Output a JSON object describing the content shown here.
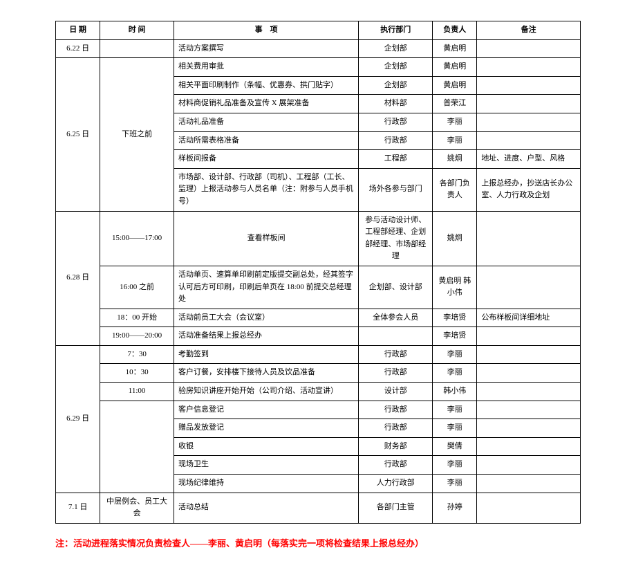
{
  "headers": {
    "date": "日 期",
    "time": "时 间",
    "item": "事　项",
    "dept": "执行部门",
    "person": "负责人",
    "note": "备注"
  },
  "rows": [
    {
      "date": "6.22 日",
      "time": "",
      "item": "活动方案撰写",
      "dept": "企划部",
      "person": "黄启明",
      "note": ""
    },
    {
      "date": "6.25 日",
      "dateRowspan": 7,
      "time": "下班之前",
      "timeRowspan": 7,
      "item": "相关费用审批",
      "dept": "企划部",
      "person": "黄启明",
      "note": ""
    },
    {
      "item": "相关平面印刷制作（条幅、优惠券、拱门贴字）",
      "dept": "企划部",
      "person": "黄启明",
      "note": ""
    },
    {
      "item": "材料商促销礼品准备及宣传 X 展架准备",
      "dept": "材料部",
      "person": "普荣江",
      "note": ""
    },
    {
      "item": "活动礼品准备",
      "dept": "行政部",
      "person": "李丽",
      "note": ""
    },
    {
      "item": "活动所需表格准备",
      "dept": "行政部",
      "person": "李丽",
      "note": ""
    },
    {
      "item": "样板间报备",
      "dept": "工程部",
      "person": "姚炯",
      "note": "地址、进度、户型、风格"
    },
    {
      "item": "市场部、设计部、行政部（司机）、工程部（工长、监理）上报活动参与人员名单（注：附参与人员手机号）",
      "dept": "场外各参与部门",
      "person": "各部门负责人",
      "note": "上报总经办，抄送店长办公室、人力行政及企划"
    },
    {
      "date": "6.28 日",
      "dateRowspan": 4,
      "time": "15:00——17:00",
      "item": "查看样板间",
      "itemAlign": "center",
      "dept": "参与活动设计师、工程部经理、企划部经理、市场部经理",
      "person": "姚炯",
      "note": ""
    },
    {
      "time": "16:00 之前",
      "item": "活动单页、速算单印刷前定版提交副总处，经其签字认可后方可印刷，印刷后单页在 18:00 前提交总经理处",
      "dept": "企划部、设计部",
      "person": "黄启明 韩小伟",
      "note": ""
    },
    {
      "time": "18：00 开始",
      "item": "活动前员工大会（会议室）",
      "dept": "全体参会人员",
      "person": "李培贤",
      "note": "公布样板间详细地址"
    },
    {
      "time": "19:00——20:00",
      "item": "活动准备结果上报总经办",
      "dept": "",
      "person": "李培贤",
      "note": ""
    },
    {
      "date": "6.29 日",
      "dateRowspan": 8,
      "time": "7：30",
      "item": "考勤签到",
      "dept": "行政部",
      "person": "李丽",
      "note": ""
    },
    {
      "time": "10：30",
      "item": "客户订餐，安排楼下接待人员及饮品准备",
      "dept": "行政部",
      "person": "李丽",
      "note": ""
    },
    {
      "time": "11:00",
      "item": "验房知识讲座开始开始（公司介绍、活动宣讲）",
      "dept": "设计部",
      "person": "韩小伟",
      "note": ""
    },
    {
      "time": "",
      "timeRowspan": 5,
      "item": "客户信息登记",
      "dept": "行政部",
      "person": "李丽",
      "note": ""
    },
    {
      "item": "赠品发放登记",
      "dept": "行政部",
      "person": "李丽",
      "note": ""
    },
    {
      "item": "收银",
      "dept": "财务部",
      "person": "樊倩",
      "note": ""
    },
    {
      "item": "现场卫生",
      "dept": "行政部",
      "person": "李丽",
      "note": ""
    },
    {
      "item": "现场纪律维持",
      "dept": "人力行政部",
      "person": "李丽",
      "note": ""
    },
    {
      "date": "7.1 日",
      "time": "中层例会、员工大会",
      "item": "活动总结",
      "dept": "各部门主管",
      "person": "孙婷",
      "note": ""
    }
  ],
  "footnote": "注：活动进程落实情况负责检查人——李丽、黄启明（每落实完一项将检查结果上报总经办）"
}
